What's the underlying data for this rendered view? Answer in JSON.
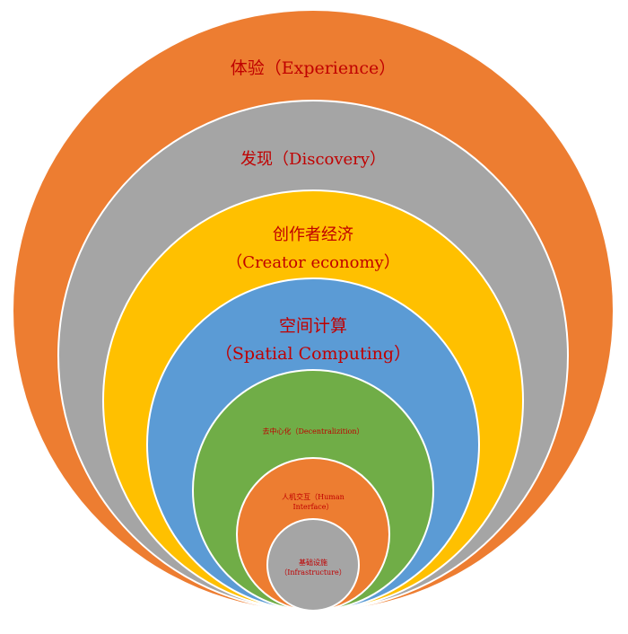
{
  "layers": [
    {
      "id": "experience",
      "fill": "#ED7D31",
      "lines": [
        "体验（Experience）"
      ]
    },
    {
      "id": "discovery",
      "fill": "#A5A5A5",
      "lines": [
        "发现（Discovery）"
      ]
    },
    {
      "id": "creator-economy",
      "fill": "#FFC000",
      "lines": [
        "创作者经济",
        "（Creator economy）"
      ]
    },
    {
      "id": "spatial-computing",
      "fill": "#5B9BD5",
      "lines": [
        "空间计算",
        "（Spatial Computing）"
      ]
    },
    {
      "id": "decentralization",
      "fill": "#70AD47",
      "lines": [
        "去中心化（Decentralizition）"
      ]
    },
    {
      "id": "human-interface",
      "fill": "#ED7D31",
      "lines": [
        "人机交互（Human",
        "Interface）"
      ]
    },
    {
      "id": "infrastructure",
      "fill": "#A5A5A5",
      "lines": [
        "基础设施",
        "（Infrastructure）"
      ]
    }
  ],
  "colors": {
    "label": "#C00000",
    "outline": "#FFFFFF"
  }
}
